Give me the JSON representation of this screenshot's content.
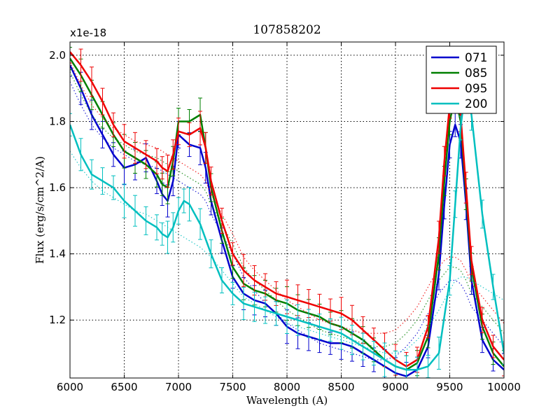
{
  "chart_data": {
    "type": "line",
    "title": "107858202",
    "xlabel": "Wavelength (A)",
    "ylabel": "Flux (erg/s/cm^2/A)",
    "scale_label": "x1e-18",
    "xlim": [
      6000,
      10000
    ],
    "ylim": [
      1.025,
      2.04
    ],
    "x_ticks": [
      6000,
      6500,
      7000,
      7500,
      8000,
      8500,
      9000,
      9500,
      10000
    ],
    "x_tick_labels": [
      "6000",
      "6500",
      "7000",
      "7500",
      "8000",
      "8500",
      "9000",
      "9500",
      "10000"
    ],
    "y_ticks": [
      1.2,
      1.4,
      1.6,
      1.8,
      2.0
    ],
    "y_tick_labels": [
      "1.2",
      "1.4",
      "1.6",
      "1.8",
      "2.0"
    ],
    "grid": true,
    "legend_position": "top-right",
    "series": [
      {
        "name": "071",
        "color": "#0000cc",
        "x": [
          6000,
          6100,
          6200,
          6300,
          6400,
          6500,
          6600,
          6700,
          6800,
          6850,
          6900,
          6950,
          7000,
          7100,
          7200,
          7250,
          7300,
          7400,
          7500,
          7600,
          7700,
          7800,
          7900,
          8000,
          8100,
          8200,
          8300,
          8400,
          8500,
          8600,
          8700,
          8800,
          8900,
          9000,
          9100,
          9200,
          9300,
          9400,
          9450,
          9500,
          9550,
          9600,
          9650,
          9700,
          9800,
          9900,
          10000
        ],
        "y": [
          1.97,
          1.9,
          1.82,
          1.76,
          1.7,
          1.66,
          1.67,
          1.69,
          1.62,
          1.58,
          1.56,
          1.62,
          1.76,
          1.73,
          1.72,
          1.66,
          1.56,
          1.44,
          1.33,
          1.28,
          1.26,
          1.25,
          1.22,
          1.18,
          1.16,
          1.15,
          1.14,
          1.13,
          1.13,
          1.12,
          1.1,
          1.08,
          1.06,
          1.04,
          1.03,
          1.05,
          1.12,
          1.34,
          1.55,
          1.73,
          1.79,
          1.74,
          1.55,
          1.32,
          1.14,
          1.08,
          1.05
        ],
        "trend_y": [
          1.92,
          1.85,
          1.79,
          1.75,
          1.72,
          1.7,
          1.68,
          1.67,
          1.66,
          1.65,
          1.64,
          1.63,
          1.62,
          1.6,
          1.58,
          1.56,
          1.52,
          1.46,
          1.4,
          1.33,
          1.29,
          1.25,
          1.22,
          1.19,
          1.17,
          1.15,
          1.13,
          1.12,
          1.11,
          1.1,
          1.09,
          1.08,
          1.08,
          1.09,
          1.12,
          1.16,
          1.22,
          1.28,
          1.3,
          1.32,
          1.32,
          1.31,
          1.28,
          1.24,
          1.2,
          1.16,
          1.12
        ]
      },
      {
        "name": "085",
        "color": "#007f00",
        "x": [
          6000,
          6100,
          6200,
          6300,
          6400,
          6500,
          6600,
          6700,
          6800,
          6850,
          6900,
          6950,
          7000,
          7100,
          7200,
          7250,
          7300,
          7400,
          7500,
          7600,
          7700,
          7800,
          7900,
          8000,
          8100,
          8200,
          8300,
          8400,
          8500,
          8600,
          8700,
          8800,
          8900,
          9000,
          9100,
          9200,
          9300,
          9400,
          9450,
          9500,
          9550,
          9600,
          9650,
          9700,
          9800,
          9900,
          10000
        ],
        "y": [
          1.99,
          1.94,
          1.88,
          1.82,
          1.76,
          1.71,
          1.69,
          1.67,
          1.64,
          1.61,
          1.6,
          1.68,
          1.8,
          1.8,
          1.82,
          1.72,
          1.6,
          1.47,
          1.36,
          1.31,
          1.29,
          1.28,
          1.26,
          1.25,
          1.23,
          1.22,
          1.21,
          1.19,
          1.18,
          1.16,
          1.14,
          1.11,
          1.08,
          1.06,
          1.05,
          1.07,
          1.15,
          1.4,
          1.62,
          1.8,
          1.88,
          1.8,
          1.58,
          1.36,
          1.18,
          1.1,
          1.06
        ],
        "trend_y": [
          1.95,
          1.88,
          1.82,
          1.78,
          1.75,
          1.73,
          1.71,
          1.7,
          1.69,
          1.68,
          1.67,
          1.66,
          1.65,
          1.63,
          1.61,
          1.59,
          1.55,
          1.49,
          1.43,
          1.36,
          1.32,
          1.29,
          1.26,
          1.23,
          1.21,
          1.19,
          1.17,
          1.16,
          1.15,
          1.14,
          1.13,
          1.12,
          1.12,
          1.13,
          1.16,
          1.2,
          1.26,
          1.32,
          1.34,
          1.36,
          1.36,
          1.35,
          1.32,
          1.28,
          1.24,
          1.2,
          1.16
        ]
      },
      {
        "name": "095",
        "color": "#ee0000",
        "x": [
          6000,
          6100,
          6200,
          6300,
          6400,
          6500,
          6600,
          6700,
          6800,
          6850,
          6900,
          6950,
          7000,
          7100,
          7200,
          7250,
          7300,
          7400,
          7500,
          7600,
          7700,
          7800,
          7900,
          8000,
          8100,
          8200,
          8300,
          8400,
          8500,
          8600,
          8700,
          8800,
          8900,
          9000,
          9100,
          9200,
          9300,
          9400,
          9450,
          9500,
          9550,
          9600,
          9650,
          9700,
          9800,
          9900,
          10000
        ],
        "y": [
          2.01,
          1.97,
          1.92,
          1.86,
          1.79,
          1.74,
          1.72,
          1.7,
          1.68,
          1.66,
          1.65,
          1.7,
          1.77,
          1.76,
          1.78,
          1.72,
          1.62,
          1.5,
          1.4,
          1.35,
          1.32,
          1.3,
          1.28,
          1.27,
          1.26,
          1.25,
          1.24,
          1.23,
          1.22,
          1.2,
          1.17,
          1.14,
          1.11,
          1.08,
          1.06,
          1.08,
          1.18,
          1.45,
          1.68,
          1.85,
          1.9,
          1.82,
          1.6,
          1.38,
          1.2,
          1.12,
          1.08
        ],
        "trend_y": [
          1.98,
          1.91,
          1.85,
          1.81,
          1.78,
          1.76,
          1.74,
          1.73,
          1.72,
          1.71,
          1.7,
          1.69,
          1.68,
          1.66,
          1.64,
          1.62,
          1.58,
          1.52,
          1.46,
          1.39,
          1.35,
          1.32,
          1.29,
          1.26,
          1.24,
          1.22,
          1.2,
          1.19,
          1.18,
          1.17,
          1.16,
          1.16,
          1.16,
          1.17,
          1.2,
          1.24,
          1.3,
          1.36,
          1.38,
          1.39,
          1.39,
          1.38,
          1.35,
          1.31,
          1.27,
          1.23,
          1.19
        ]
      },
      {
        "name": "200",
        "color": "#00bfbf",
        "x": [
          6000,
          6100,
          6200,
          6300,
          6400,
          6500,
          6600,
          6700,
          6800,
          6850,
          6900,
          6950,
          7000,
          7050,
          7100,
          7200,
          7300,
          7400,
          7500,
          7600,
          7700,
          7800,
          7900,
          8000,
          8100,
          8200,
          8300,
          8400,
          8500,
          8600,
          8700,
          8800,
          8900,
          9000,
          9100,
          9200,
          9300,
          9400,
          9500,
          9550,
          9600,
          9650,
          9700,
          9800,
          9900,
          10000
        ],
        "y": [
          1.79,
          1.7,
          1.64,
          1.62,
          1.6,
          1.56,
          1.53,
          1.5,
          1.48,
          1.46,
          1.45,
          1.48,
          1.53,
          1.56,
          1.55,
          1.49,
          1.4,
          1.32,
          1.28,
          1.25,
          1.24,
          1.23,
          1.22,
          1.21,
          1.2,
          1.19,
          1.18,
          1.17,
          1.16,
          1.14,
          1.12,
          1.1,
          1.08,
          1.06,
          1.05,
          1.05,
          1.06,
          1.1,
          1.32,
          1.55,
          1.78,
          1.92,
          1.82,
          1.52,
          1.3,
          1.1
        ],
        "trend_y": [
          1.71,
          1.66,
          1.62,
          1.59,
          1.57,
          1.55,
          1.53,
          1.52,
          1.5,
          1.49,
          1.48,
          1.47,
          1.46,
          1.45,
          1.44,
          1.42,
          1.39,
          1.35,
          1.31,
          1.27,
          1.25,
          1.23,
          1.21,
          1.19,
          1.18,
          1.17,
          1.16,
          1.15,
          1.14,
          1.13,
          1.12,
          1.11,
          1.1,
          1.1,
          1.11,
          1.14,
          1.18,
          1.23,
          1.29,
          1.32,
          1.33,
          1.33,
          1.32,
          1.3,
          1.28,
          1.26
        ]
      }
    ]
  }
}
